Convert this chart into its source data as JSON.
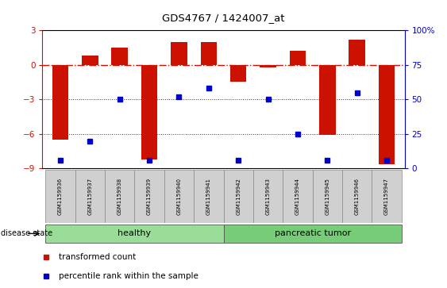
{
  "title": "GDS4767 / 1424007_at",
  "samples": [
    "GSM1159936",
    "GSM1159937",
    "GSM1159938",
    "GSM1159939",
    "GSM1159940",
    "GSM1159941",
    "GSM1159942",
    "GSM1159943",
    "GSM1159944",
    "GSM1159945",
    "GSM1159946",
    "GSM1159947"
  ],
  "bar_values": [
    -6.5,
    0.8,
    1.5,
    -8.2,
    2.0,
    2.0,
    -1.5,
    -0.2,
    1.2,
    -6.1,
    2.2,
    -8.6
  ],
  "blue_pct": [
    6,
    20,
    50,
    6,
    52,
    58,
    6,
    50,
    25,
    6,
    55,
    6
  ],
  "ylim_left": [
    -9,
    3
  ],
  "ylim_right": [
    0,
    100
  ],
  "yticks_left": [
    -9,
    -6,
    -3,
    0,
    3
  ],
  "yticks_right": [
    0,
    25,
    50,
    75,
    100
  ],
  "bar_color": "#cc1100",
  "blue_color": "#0000cc",
  "hline_color": "#cc1100",
  "dotted_color": "#333333",
  "healthy_color": "#99dd99",
  "tumor_color": "#77cc77",
  "healthy_label": "healthy",
  "tumor_label": "pancreatic tumor",
  "disease_label": "disease state",
  "legend_bar": "transformed count",
  "legend_blue": "percentile rank within the sample",
  "n_healthy": 6,
  "n_tumor": 6,
  "bg_color": "#ffffff",
  "gray_box": "#d0d0d0"
}
